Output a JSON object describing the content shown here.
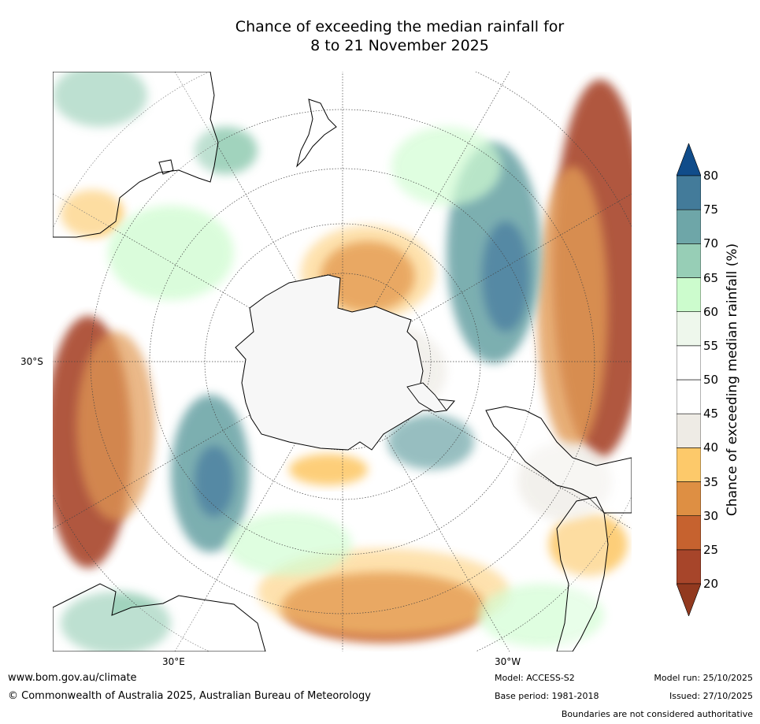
{
  "title": {
    "line1": "Chance of exceeding the median rainfall for",
    "line2": "8 to 21 November 2025"
  },
  "map": {
    "lat_label": "30°S",
    "lon_labels": [
      "30°E",
      "30°W"
    ],
    "projection": "south-polar-stereographic"
  },
  "colorbar": {
    "label": "Chance of exceeding median rainfall (%)",
    "ticks": [
      "20",
      "25",
      "30",
      "35",
      "40",
      "45",
      "50",
      "55",
      "60",
      "65",
      "70",
      "75",
      "80"
    ],
    "band_colors": [
      "#a7452a",
      "#c6622f",
      "#de8f43",
      "#fdc96a",
      "#eeebe5",
      "#ffffff",
      "#ffffff",
      "#eef7ec",
      "#ccfccd",
      "#97ceb6",
      "#6ea6a8",
      "#437b9a"
    ],
    "under_color": "#92391f",
    "over_color": "#104c8a"
  },
  "footer": {
    "website": "www.bom.gov.au/climate",
    "copyright": "© Commonwealth of Australia 2025, Australian Bureau of Meteorology",
    "model": "Model: ACCESS-S2",
    "base_period": "Base period: 1981-2018",
    "model_run": "Model run: 25/10/2025",
    "issued": "Issued: 27/10/2025",
    "disclaimer": "Boundaries are not considered authoritative"
  }
}
